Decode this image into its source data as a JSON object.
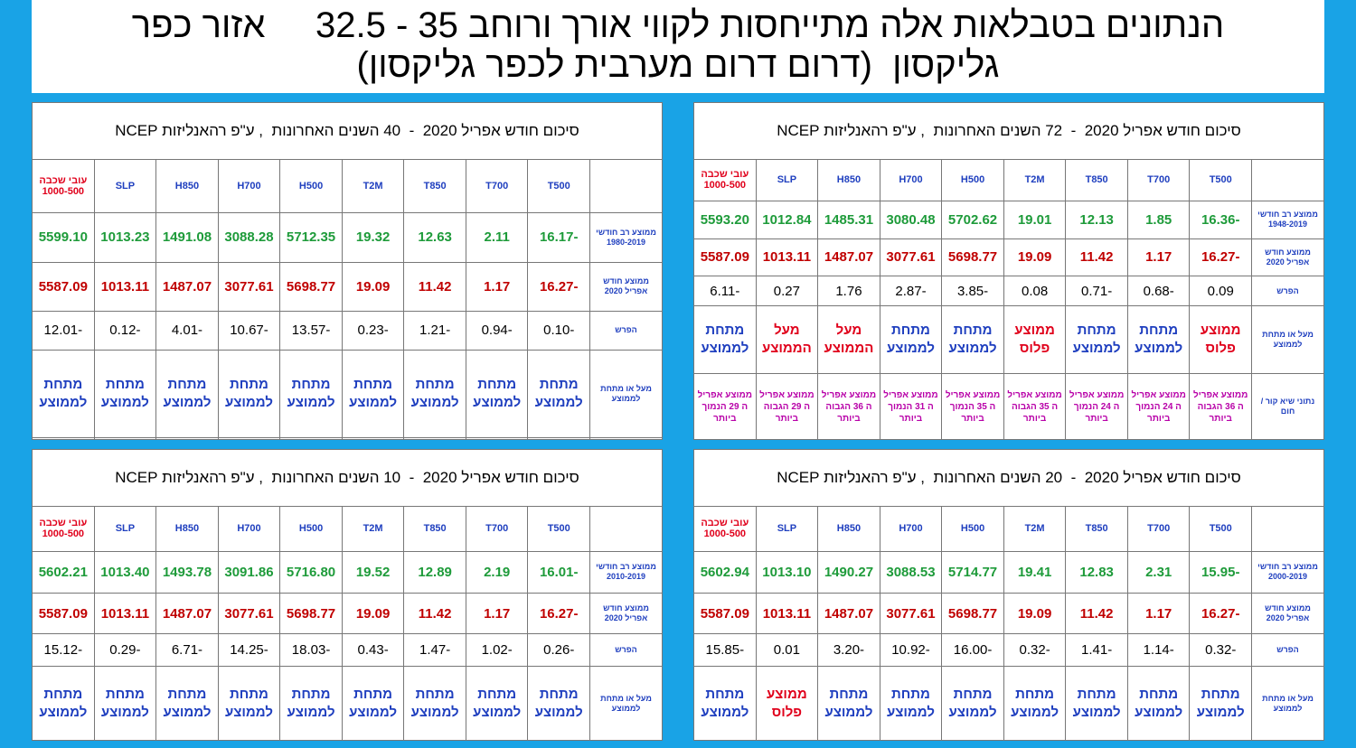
{
  "header": {
    "title_lines": [
      "הנתונים בטבלאות אלה מתייחסות לקווי אורך ורוחב 35 - 32.5     אזור כפר",
      "גליקסון  (דרום דרום מערבית לכפר גליקסון)"
    ]
  },
  "tables": [
    {
      "title": "סיכום חודש אפריל 2020  -  72 השנים האחרונות  , ע\"פ רהאנליזות NCEP",
      "columns": [
        "T500",
        "T700",
        "T850",
        "T2M",
        "H500",
        "H700",
        "H850",
        "SLP",
        "עובי שכבה 1000-500"
      ],
      "rows": [
        {
          "label": "ממוצע רב חודשי 1948-2019",
          "color": "#1e9b3a",
          "values": [
            "-16.36",
            "1.85",
            "12.13",
            "19.01",
            "5702.62",
            "3080.48",
            "1485.31",
            "1012.84",
            "5593.20"
          ]
        },
        {
          "label": "ממוצע חודש אפריל 2020",
          "color": "#c00000",
          "values": [
            "-16.27",
            "1.17",
            "11.42",
            "19.09",
            "5698.77",
            "3077.61",
            "1487.07",
            "1013.11",
            "5587.09"
          ]
        },
        {
          "label": "הפרש",
          "color": "#000000",
          "values": [
            "0.09",
            "-0.68",
            "-0.71",
            "0.08",
            "-3.85",
            "-2.87",
            "1.76",
            "0.27",
            "-6.11"
          ]
        },
        {
          "label": "מעל או מתחת לממוצע",
          "colors": [
            "#e0001b",
            "#1f3fbf",
            "#1f3fbf",
            "#e0001b",
            "#1f3fbf",
            "#1f3fbf",
            "#e0001b",
            "#e0001b",
            "#1f3fbf"
          ],
          "values": [
            "ממוצע פלוס",
            "מתחת לממוצע",
            "מתחת לממוצע",
            "ממוצע פלוס",
            "מתחת לממוצע",
            "מתחת לממוצע",
            "מעל הממוצע",
            "מעל הממוצע",
            "מתחת לממוצע"
          ]
        },
        {
          "label": "נתוני שיא קור / חום",
          "color": "#b800a8",
          "values": [
            "ממוצע אפריל ה 36 הגבוה ביותר",
            "ממוצע אפריל ה 24 הנמוך ביותר",
            "ממוצע אפריל ה 24 הנמוך ביותר",
            "ממוצע אפריל ה 35 הגבוה ביותר",
            "ממוצע אפריל ה 35 הנמוך ביותר",
            "ממוצע אפריל ה 31 הנמוך ביותר",
            "ממוצע אפריל ה 36 הגבוה ביותר",
            "ממוצע אפריל ה 29 הגבוה ביותר",
            "ממוצע אפריל ה 29 הנמוך ביותר"
          ]
        }
      ]
    },
    {
      "title": "סיכום חודש אפריל 2020  -  40 השנים האחרונות  , ע\"פ רהאנליזות NCEP",
      "columns": [
        "T500",
        "T700",
        "T850",
        "T2M",
        "H500",
        "H700",
        "H850",
        "SLP",
        "עובי שכבה 1000-500"
      ],
      "rows": [
        {
          "label": "ממוצע רב חודשי 1980-2019",
          "color": "#1e9b3a",
          "values": [
            "-16.17",
            "2.11",
            "12.63",
            "19.32",
            "5712.35",
            "3088.28",
            "1491.08",
            "1013.23",
            "5599.10"
          ]
        },
        {
          "label": "ממוצע חודש אפריל 2020",
          "color": "#c00000",
          "values": [
            "-16.27",
            "1.17",
            "11.42",
            "19.09",
            "5698.77",
            "3077.61",
            "1487.07",
            "1013.11",
            "5587.09"
          ]
        },
        {
          "label": "הפרש",
          "color": "#000000",
          "values": [
            "-0.10",
            "-0.94",
            "-1.21",
            "-0.23",
            "-13.57",
            "-10.67",
            "-4.01",
            "-0.12",
            "-12.01"
          ]
        },
        {
          "label": "מעל או מתחת לממוצע",
          "color": "#1f3fbf",
          "values": [
            "מתחת לממוצע",
            "מתחת לממוצע",
            "מתחת לממוצע",
            "מתחת לממוצע",
            "מתחת לממוצע",
            "מתחת לממוצע",
            "מתחת לממוצע",
            "מתחת לממוצע",
            "מתחת לממוצע"
          ]
        }
      ]
    },
    {
      "title": "סיכום חודש אפריל 2020  -  20 השנים האחרונות  , ע\"פ רהאנליזות NCEP",
      "columns": [
        "T500",
        "T700",
        "T850",
        "T2M",
        "H500",
        "H700",
        "H850",
        "SLP",
        "עובי שכבה 1000-500"
      ],
      "rows": [
        {
          "label": "ממוצע רב חודשי 2000-2019",
          "color": "#1e9b3a",
          "values": [
            "-15.95",
            "2.31",
            "12.83",
            "19.41",
            "5714.77",
            "3088.53",
            "1490.27",
            "1013.10",
            "5602.94"
          ]
        },
        {
          "label": "ממוצע חודש אפריל 2020",
          "color": "#c00000",
          "values": [
            "-16.27",
            "1.17",
            "11.42",
            "19.09",
            "5698.77",
            "3077.61",
            "1487.07",
            "1013.11",
            "5587.09"
          ]
        },
        {
          "label": "הפרש",
          "color": "#000000",
          "values": [
            "-0.32",
            "-1.14",
            "-1.41",
            "-0.32",
            "-16.00",
            "-10.92",
            "-3.20",
            "0.01",
            "-15.85"
          ]
        },
        {
          "label": "מעל או מתחת לממוצע",
          "colors": [
            "#1f3fbf",
            "#1f3fbf",
            "#1f3fbf",
            "#1f3fbf",
            "#1f3fbf",
            "#1f3fbf",
            "#1f3fbf",
            "#e0001b",
            "#1f3fbf"
          ],
          "values": [
            "מתחת לממוצע",
            "מתחת לממוצע",
            "מתחת לממוצע",
            "מתחת לממוצע",
            "מתחת לממוצע",
            "מתחת לממוצע",
            "מתחת לממוצע",
            "ממוצע פלוס",
            "מתחת לממוצע"
          ]
        }
      ]
    },
    {
      "title": "סיכום חודש אפריל 2020  -  10 השנים האחרונות  , ע\"פ רהאנליזות NCEP",
      "columns": [
        "T500",
        "T700",
        "T850",
        "T2M",
        "H500",
        "H700",
        "H850",
        "SLP",
        "עובי שכבה 1000-500"
      ],
      "rows": [
        {
          "label": "ממוצע רב חודשי 2010-2019",
          "color": "#1e9b3a",
          "values": [
            "-16.01",
            "2.19",
            "12.89",
            "19.52",
            "5716.80",
            "3091.86",
            "1493.78",
            "1013.40",
            "5602.21"
          ]
        },
        {
          "label": "ממוצע חודש אפריל 2020",
          "color": "#c00000",
          "values": [
            "-16.27",
            "1.17",
            "11.42",
            "19.09",
            "5698.77",
            "3077.61",
            "1487.07",
            "1013.11",
            "5587.09"
          ]
        },
        {
          "label": "הפרש",
          "color": "#000000",
          "values": [
            "-0.26",
            "-1.02",
            "-1.47",
            "-0.43",
            "-18.03",
            "-14.25",
            "-6.71",
            "-0.29",
            "-15.12"
          ]
        },
        {
          "label": "מעל או מתחת לממוצע",
          "color": "#1f3fbf",
          "values": [
            "מתחת לממוצע",
            "מתחת לממוצע",
            "מתחת לממוצע",
            "מתחת לממוצע",
            "מתחת לממוצע",
            "מתחת לממוצע",
            "מתחת לממוצע",
            "מתחת לממוצע",
            "מתחת לממוצע"
          ]
        }
      ]
    }
  ]
}
